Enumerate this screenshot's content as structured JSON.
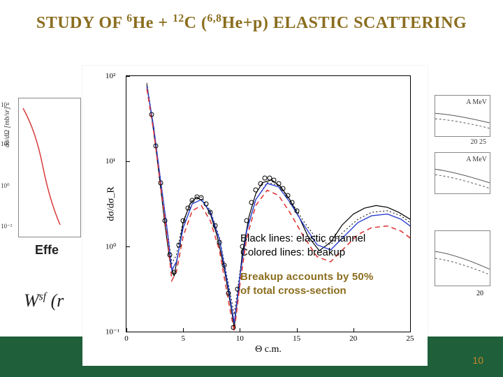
{
  "title": {
    "plain_segments": [
      "STUDY OF ",
      "6",
      "He + ",
      "12",
      "C (",
      "6,8",
      "He+p) ELASTIC SCATTERING"
    ],
    "color": "#8a6d1e",
    "fontsize_pt": 18
  },
  "footer": {
    "band_color": "#1f5f3a",
    "page_number": "10",
    "page_number_color": "#c98a2a"
  },
  "background_fragments": {
    "left_plot": {
      "ylabel": "dσ/dΩ [mb/sr]",
      "yticks": [
        "10⁴",
        "10²",
        "10⁰",
        "10⁻²"
      ],
      "curve_color": "#d83a3a"
    },
    "right_labels": [
      "A MeV",
      "20   25",
      "A MeV",
      "20"
    ],
    "effe_text": "Effe",
    "wsf_text_parts": [
      "W",
      "sf",
      " (r"
    ]
  },
  "legend": {
    "line1": "Black lines: elastic channel",
    "line2": "Colored lines: breakup",
    "line3": "Breakup accounts by 50%",
    "line4": "of total cross-section",
    "accent_color": "#8a6d1e"
  },
  "chart": {
    "type": "line+scatter",
    "xlabel": "Θ c.m.",
    "ylabel": "dσ/dσ_R",
    "xlim": [
      0,
      25
    ],
    "xtick_step": 5,
    "ylim_log10": [
      -1,
      2
    ],
    "ytick_labels": [
      "10⁻¹",
      "10⁰",
      "10¹",
      "10²"
    ],
    "ytick_log10": [
      -1,
      0,
      1,
      2
    ],
    "background_color": "#ffffff",
    "axis_color": "#000000",
    "label_fontsize": 14,
    "tick_fontsize": 11,
    "series": [
      {
        "name": "elastic-solid",
        "color": "#000000",
        "dash": "none",
        "width": 1.2,
        "points": [
          [
            1.8,
            1.9
          ],
          [
            2.2,
            1.55
          ],
          [
            2.6,
            1.15
          ],
          [
            3.0,
            0.7
          ],
          [
            3.4,
            0.25
          ],
          [
            3.8,
            -0.15
          ],
          [
            4.2,
            -0.35
          ],
          [
            4.6,
            -0.05
          ],
          [
            5.0,
            0.28
          ],
          [
            5.6,
            0.5
          ],
          [
            6.2,
            0.58
          ],
          [
            6.8,
            0.52
          ],
          [
            7.4,
            0.38
          ],
          [
            8.0,
            0.12
          ],
          [
            8.6,
            -0.25
          ],
          [
            9.2,
            -0.7
          ],
          [
            9.5,
            -0.95
          ],
          [
            9.8,
            -0.6
          ],
          [
            10.2,
            -0.1
          ],
          [
            10.8,
            0.35
          ],
          [
            11.4,
            0.62
          ],
          [
            12.0,
            0.75
          ],
          [
            12.8,
            0.78
          ],
          [
            13.6,
            0.7
          ],
          [
            14.4,
            0.55
          ],
          [
            15.2,
            0.35
          ],
          [
            16.0,
            0.12
          ],
          [
            17.0,
            -0.05
          ],
          [
            18.0,
            0.05
          ],
          [
            19.0,
            0.25
          ],
          [
            20.0,
            0.38
          ],
          [
            21.0,
            0.45
          ],
          [
            22.0,
            0.48
          ],
          [
            23.0,
            0.46
          ],
          [
            24.0,
            0.4
          ],
          [
            25.0,
            0.32
          ]
        ]
      },
      {
        "name": "elastic-dotted",
        "color": "#000000",
        "dash": "2,3",
        "width": 1.0,
        "points": [
          [
            1.8,
            1.92
          ],
          [
            2.4,
            1.4
          ],
          [
            3.0,
            0.8
          ],
          [
            3.6,
            0.2
          ],
          [
            4.0,
            -0.2
          ],
          [
            4.4,
            -0.1
          ],
          [
            5.0,
            0.3
          ],
          [
            5.8,
            0.55
          ],
          [
            6.6,
            0.58
          ],
          [
            7.4,
            0.42
          ],
          [
            8.2,
            0.1
          ],
          [
            9.0,
            -0.45
          ],
          [
            9.5,
            -0.8
          ],
          [
            10.0,
            -0.3
          ],
          [
            10.6,
            0.2
          ],
          [
            11.4,
            0.55
          ],
          [
            12.4,
            0.75
          ],
          [
            13.4,
            0.72
          ],
          [
            14.4,
            0.55
          ],
          [
            15.6,
            0.3
          ],
          [
            16.8,
            0.08
          ],
          [
            18.0,
            0.02
          ],
          [
            19.2,
            0.18
          ],
          [
            20.4,
            0.32
          ],
          [
            21.6,
            0.4
          ],
          [
            23.0,
            0.42
          ],
          [
            24.2,
            0.36
          ],
          [
            25.0,
            0.28
          ]
        ]
      },
      {
        "name": "breakup-blue",
        "color": "#2a3fd1",
        "dash": "none",
        "width": 1.4,
        "points": [
          [
            1.8,
            1.88
          ],
          [
            2.4,
            1.4
          ],
          [
            3.0,
            0.78
          ],
          [
            3.6,
            0.18
          ],
          [
            4.0,
            -0.28
          ],
          [
            4.4,
            -0.18
          ],
          [
            5.0,
            0.22
          ],
          [
            5.8,
            0.5
          ],
          [
            6.6,
            0.55
          ],
          [
            7.4,
            0.4
          ],
          [
            8.2,
            0.08
          ],
          [
            9.0,
            -0.5
          ],
          [
            9.5,
            -0.9
          ],
          [
            10.0,
            -0.35
          ],
          [
            10.6,
            0.18
          ],
          [
            11.4,
            0.55
          ],
          [
            12.4,
            0.74
          ],
          [
            13.4,
            0.7
          ],
          [
            14.4,
            0.52
          ],
          [
            15.6,
            0.26
          ],
          [
            16.8,
            0.02
          ],
          [
            18.0,
            -0.04
          ],
          [
            19.2,
            0.12
          ],
          [
            20.4,
            0.28
          ],
          [
            21.6,
            0.36
          ],
          [
            23.0,
            0.38
          ],
          [
            24.2,
            0.32
          ],
          [
            25.0,
            0.24
          ]
        ]
      },
      {
        "name": "breakup-red-dashed",
        "color": "#e03a3a",
        "dash": "7,5",
        "width": 1.6,
        "points": [
          [
            1.8,
            1.85
          ],
          [
            2.4,
            1.35
          ],
          [
            3.0,
            0.72
          ],
          [
            3.6,
            0.1
          ],
          [
            4.0,
            -0.4
          ],
          [
            4.4,
            -0.3
          ],
          [
            5.0,
            0.12
          ],
          [
            5.8,
            0.42
          ],
          [
            6.6,
            0.48
          ],
          [
            7.4,
            0.3
          ],
          [
            8.2,
            -0.05
          ],
          [
            9.0,
            -0.65
          ],
          [
            9.5,
            -1.0
          ],
          [
            10.0,
            -0.45
          ],
          [
            10.6,
            0.1
          ],
          [
            11.4,
            0.48
          ],
          [
            12.4,
            0.66
          ],
          [
            13.4,
            0.6
          ],
          [
            14.4,
            0.4
          ],
          [
            15.6,
            0.12
          ],
          [
            16.8,
            -0.12
          ],
          [
            18.0,
            -0.18
          ],
          [
            19.2,
            -0.02
          ],
          [
            20.4,
            0.14
          ],
          [
            21.6,
            0.22
          ],
          [
            23.0,
            0.24
          ],
          [
            24.2,
            0.18
          ],
          [
            25.0,
            0.1
          ]
        ]
      }
    ],
    "data_points": {
      "marker": "open-circle",
      "marker_size_px": 7,
      "marker_border": "#000000",
      "xy_log10y": [
        [
          2.2,
          1.55
        ],
        [
          2.6,
          1.18
        ],
        [
          3.0,
          0.75
        ],
        [
          3.4,
          0.3
        ],
        [
          3.8,
          -0.1
        ],
        [
          4.2,
          -0.3
        ],
        [
          4.6,
          0.02
        ],
        [
          5.0,
          0.3
        ],
        [
          5.4,
          0.45
        ],
        [
          5.8,
          0.54
        ],
        [
          6.2,
          0.58
        ],
        [
          6.6,
          0.57
        ],
        [
          7.0,
          0.5
        ],
        [
          7.4,
          0.4
        ],
        [
          7.8,
          0.25
        ],
        [
          8.2,
          0.05
        ],
        [
          8.6,
          -0.22
        ],
        [
          9.0,
          -0.55
        ],
        [
          9.4,
          -0.95
        ],
        [
          9.8,
          -0.5
        ],
        [
          10.2,
          0.0
        ],
        [
          10.6,
          0.3
        ],
        [
          11.0,
          0.52
        ],
        [
          11.4,
          0.66
        ],
        [
          11.8,
          0.74
        ],
        [
          12.2,
          0.8
        ],
        [
          12.6,
          0.8
        ],
        [
          13.0,
          0.78
        ],
        [
          13.4,
          0.74
        ],
        [
          13.8,
          0.68
        ],
        [
          14.2,
          0.6
        ],
        [
          14.6,
          0.52
        ],
        [
          15.0,
          0.42
        ]
      ]
    }
  }
}
